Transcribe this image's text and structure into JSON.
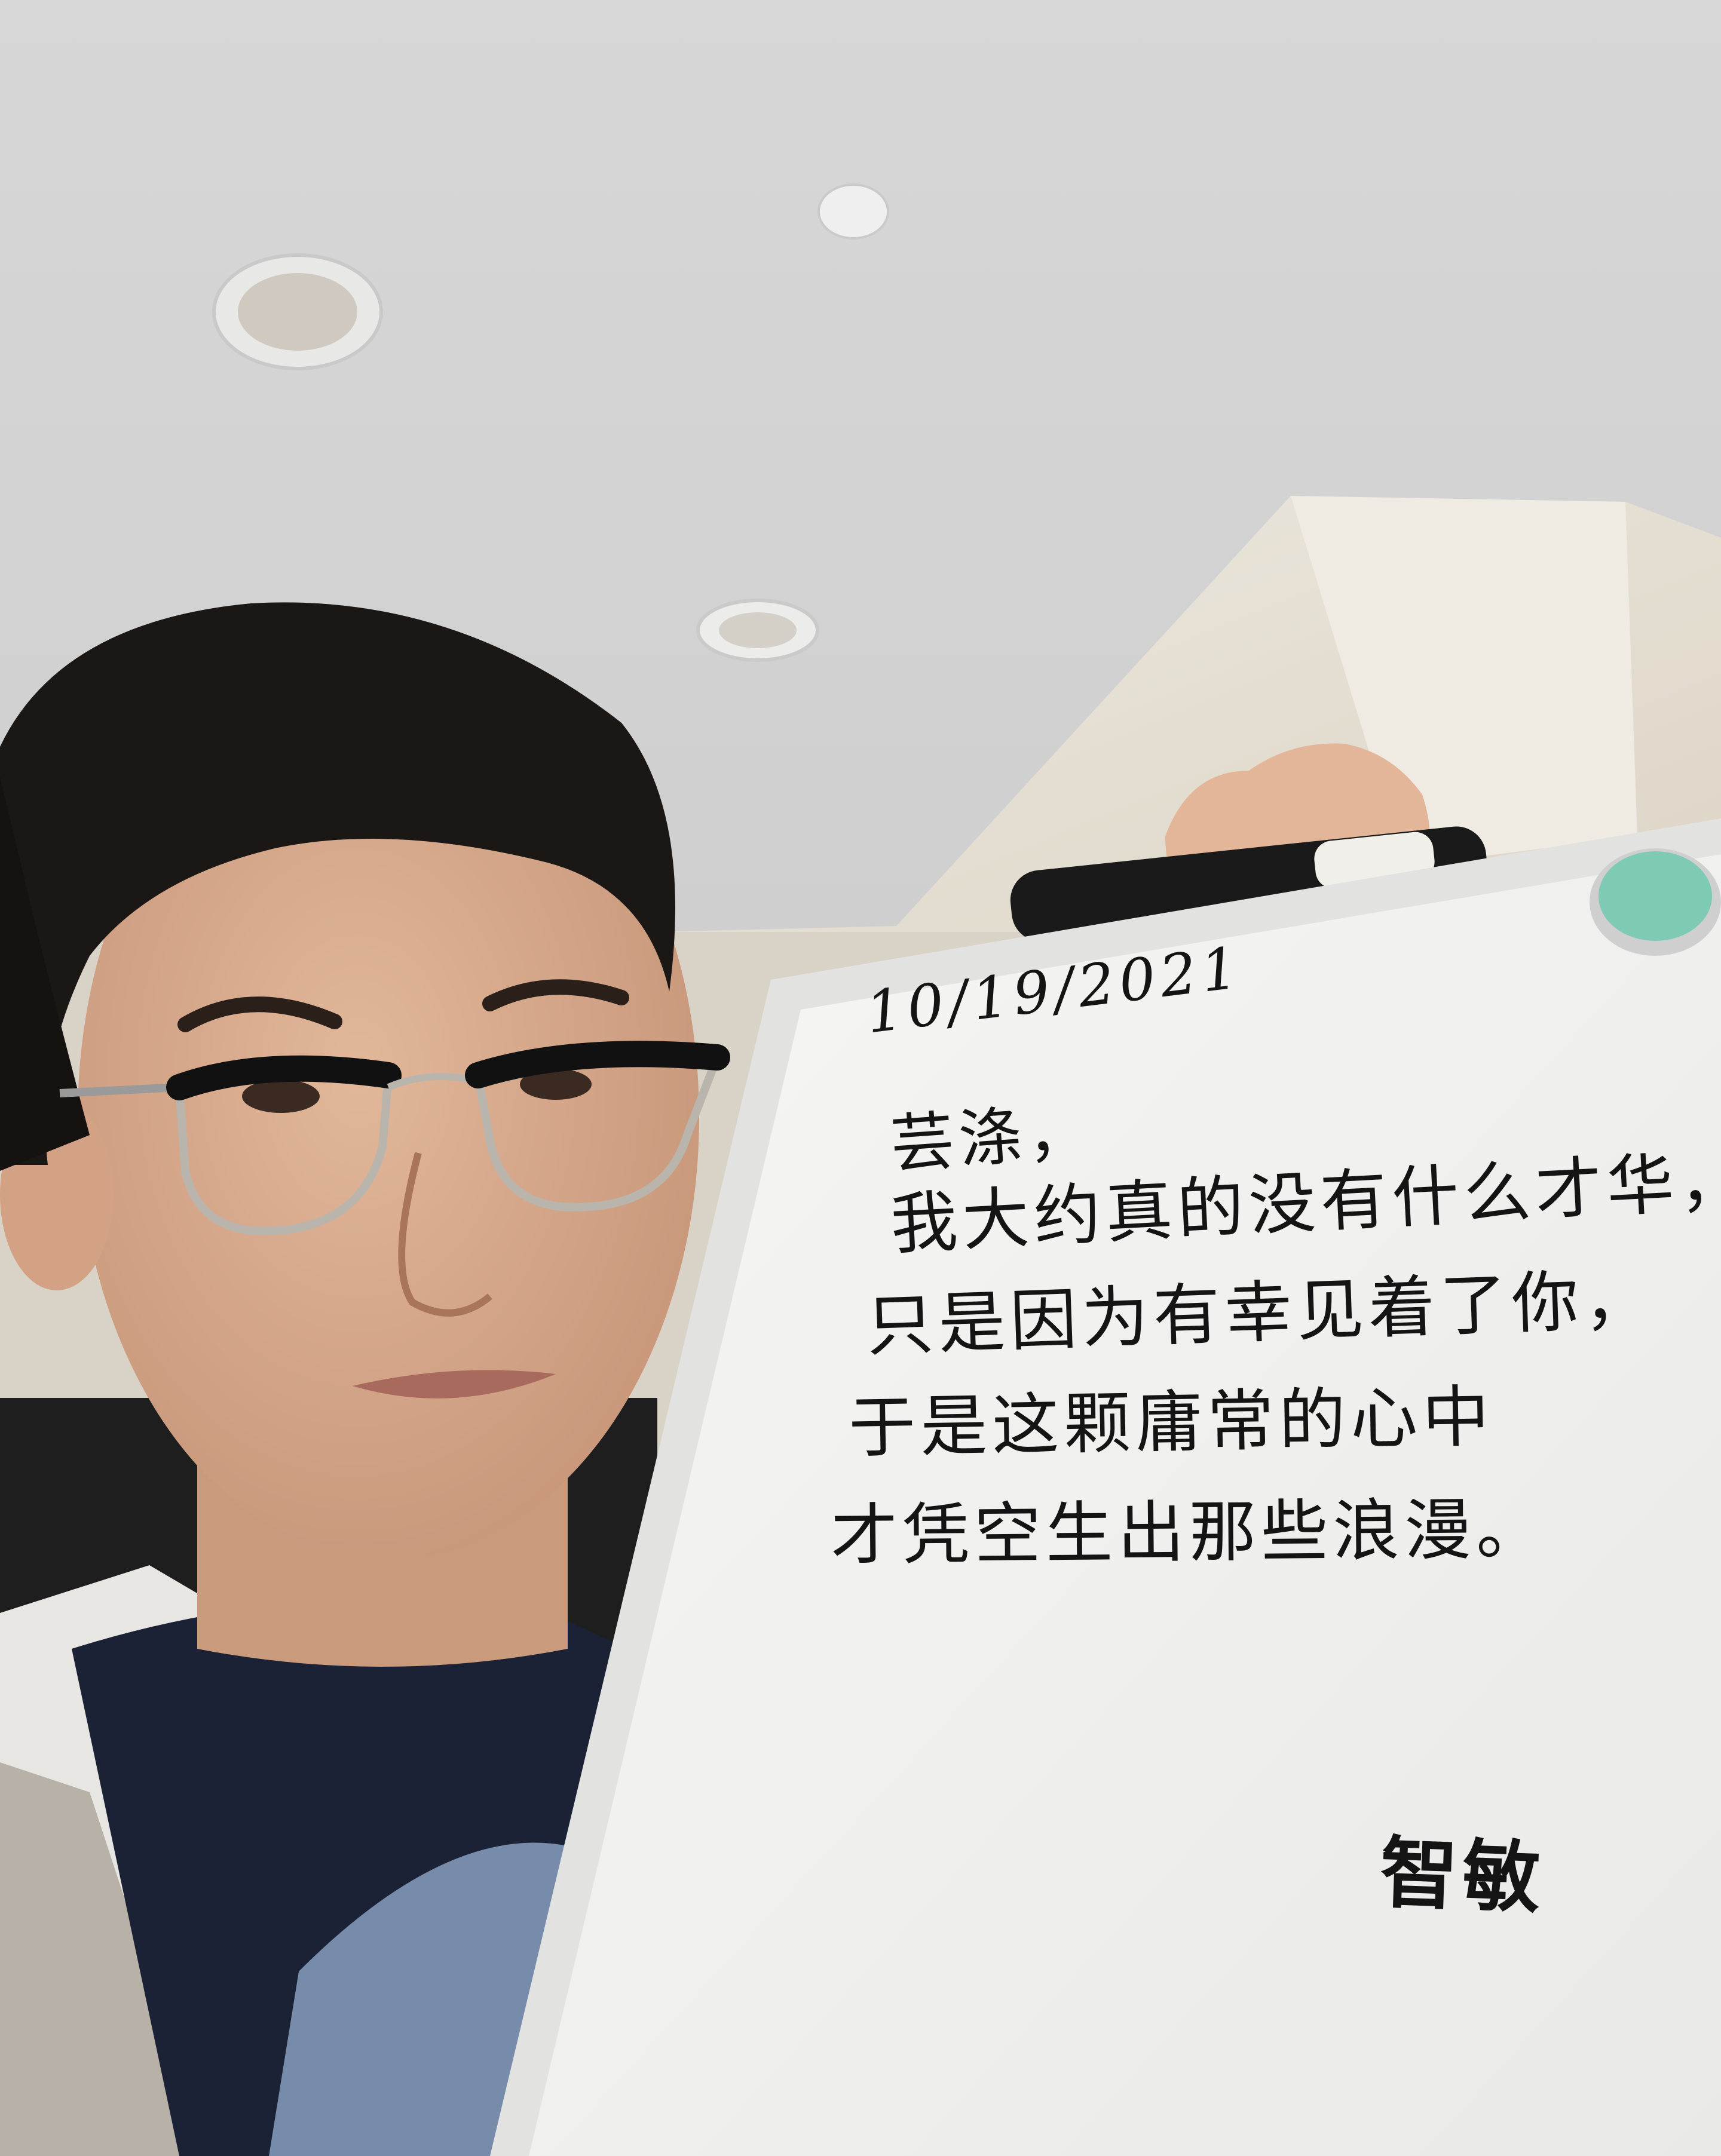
{
  "photo": {
    "colors": {
      "ceiling": "#dadada",
      "wall": "#e6e0d6",
      "whiteboard": "#f4f4f2",
      "ink": "#141414",
      "hair": "#1a1715",
      "skin": "#d8aa8c",
      "shirt": "#1b2236",
      "jacket": "#e8e6e2",
      "magnet": "#7ecab5"
    }
  },
  "whiteboard": {
    "date": "10/19/2021",
    "greeting": "芸涤，",
    "lines": [
      "我大约真的没有什么才华，",
      "只是因为有幸见着了你，",
      "于是这颗庸常的心中",
      "才凭空生出那些浪漫。"
    ],
    "signature": "智敏"
  }
}
